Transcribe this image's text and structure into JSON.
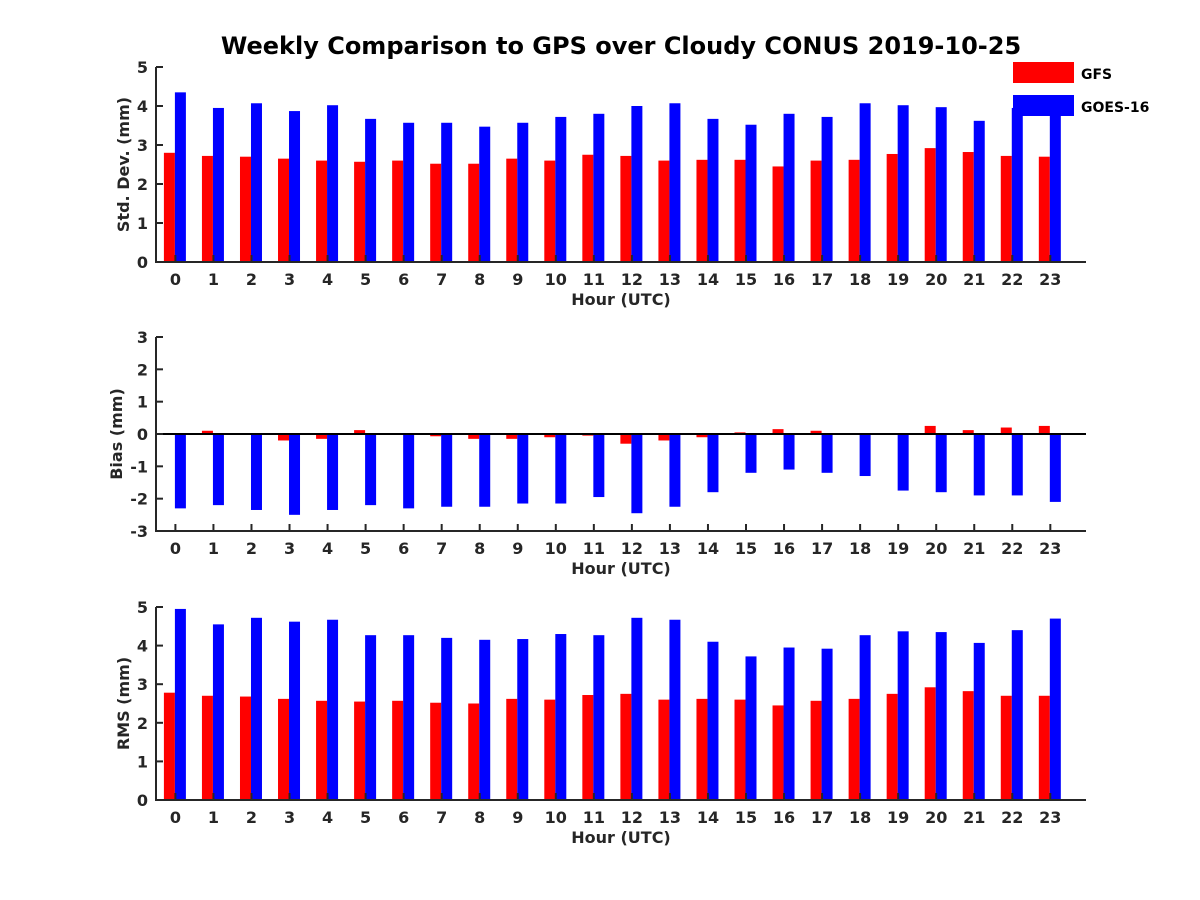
{
  "title": "Weekly Comparison to GPS over Cloudy CONUS 2019-10-25",
  "legend": {
    "position": "top-right",
    "entries": [
      {
        "label": "GFS",
        "color": "#ff0000"
      },
      {
        "label": "GOES-16",
        "color": "#0000ff"
      }
    ]
  },
  "chart_data": [
    {
      "type": "bar",
      "categories": [
        "0",
        "1",
        "2",
        "3",
        "4",
        "5",
        "6",
        "7",
        "8",
        "9",
        "10",
        "11",
        "12",
        "13",
        "14",
        "15",
        "16",
        "17",
        "18",
        "19",
        "20",
        "21",
        "22",
        "23"
      ],
      "xlabel": "Hour (UTC)",
      "ylabel": "Std. Dev. (mm)",
      "ylim": [
        0,
        5
      ],
      "yticks": [
        "0",
        "1",
        "2",
        "3",
        "4",
        "5"
      ],
      "series": [
        {
          "name": "GFS",
          "color": "#ff0000",
          "values": [
            2.8,
            2.72,
            2.7,
            2.65,
            2.6,
            2.57,
            2.6,
            2.52,
            2.52,
            2.65,
            2.6,
            2.75,
            2.72,
            2.6,
            2.62,
            2.62,
            2.45,
            2.6,
            2.62,
            2.77,
            2.92,
            2.82,
            2.72,
            2.7
          ]
        },
        {
          "name": "GOES-16",
          "color": "#0000ff",
          "values": [
            4.35,
            3.95,
            4.07,
            3.87,
            4.02,
            3.67,
            3.57,
            3.57,
            3.47,
            3.57,
            3.72,
            3.8,
            4.0,
            4.07,
            3.67,
            3.52,
            3.8,
            3.72,
            4.07,
            4.02,
            3.97,
            3.62,
            3.95,
            4.0
          ]
        }
      ]
    },
    {
      "type": "bar",
      "categories": [
        "0",
        "1",
        "2",
        "3",
        "4",
        "5",
        "6",
        "7",
        "8",
        "9",
        "10",
        "11",
        "12",
        "13",
        "14",
        "15",
        "16",
        "17",
        "18",
        "19",
        "20",
        "21",
        "22",
        "23"
      ],
      "xlabel": "Hour (UTC)",
      "ylabel": "Bias (mm)",
      "ylim": [
        -3,
        3
      ],
      "yticks": [
        "-3",
        "-2",
        "-1",
        "0",
        "1",
        "2",
        "3"
      ],
      "series": [
        {
          "name": "GFS",
          "color": "#ff0000",
          "values": [
            0.0,
            0.1,
            0.0,
            -0.2,
            -0.15,
            0.12,
            0.03,
            -0.07,
            -0.15,
            -0.15,
            -0.1,
            -0.05,
            -0.3,
            -0.2,
            -0.1,
            0.05,
            0.15,
            0.1,
            0.0,
            0.02,
            0.25,
            0.12,
            0.2,
            0.25
          ]
        },
        {
          "name": "GOES-16",
          "color": "#0000ff",
          "values": [
            -2.3,
            -2.2,
            -2.35,
            -2.5,
            -2.35,
            -2.2,
            -2.3,
            -2.25,
            -2.25,
            -2.15,
            -2.15,
            -1.95,
            -2.45,
            -2.25,
            -1.8,
            -1.2,
            -1.1,
            -1.2,
            -1.3,
            -1.75,
            -1.8,
            -1.9,
            -1.9,
            -2.1
          ]
        }
      ]
    },
    {
      "type": "bar",
      "categories": [
        "0",
        "1",
        "2",
        "3",
        "4",
        "5",
        "6",
        "7",
        "8",
        "9",
        "10",
        "11",
        "12",
        "13",
        "14",
        "15",
        "16",
        "17",
        "18",
        "19",
        "20",
        "21",
        "22",
        "23"
      ],
      "xlabel": "Hour (UTC)",
      "ylabel": "RMS (mm)",
      "ylim": [
        0,
        5
      ],
      "yticks": [
        "0",
        "1",
        "2",
        "3",
        "4",
        "5"
      ],
      "series": [
        {
          "name": "GFS",
          "color": "#ff0000",
          "values": [
            2.78,
            2.7,
            2.68,
            2.62,
            2.57,
            2.55,
            2.57,
            2.52,
            2.5,
            2.62,
            2.6,
            2.72,
            2.75,
            2.6,
            2.62,
            2.6,
            2.45,
            2.57,
            2.62,
            2.75,
            2.92,
            2.82,
            2.7,
            2.7
          ]
        },
        {
          "name": "GOES-16",
          "color": "#0000ff",
          "values": [
            4.95,
            4.55,
            4.72,
            4.62,
            4.67,
            4.27,
            4.27,
            4.2,
            4.15,
            4.17,
            4.3,
            4.27,
            4.72,
            4.67,
            4.1,
            3.72,
            3.95,
            3.92,
            4.27,
            4.37,
            4.35,
            4.07,
            4.4,
            4.7
          ]
        }
      ]
    }
  ]
}
